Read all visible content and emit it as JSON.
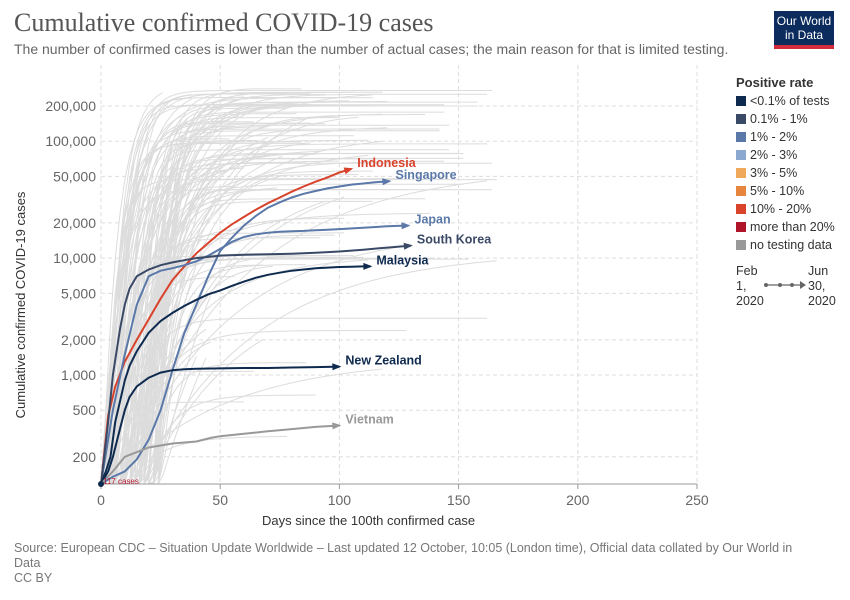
{
  "header": {
    "title": "Cumulative confirmed COVID-19 cases",
    "subtitle": "The number of confirmed cases is lower than the number of actual cases; the main reason for that is limited testing.",
    "logo_line1": "Our World",
    "logo_line2": "in Data"
  },
  "footer": {
    "source": "Source: European CDC – Situation Update Worldwide – Last updated 12 October, 10:05 (London time), Official data collated by Our World in Data",
    "license": "CC BY"
  },
  "legend": {
    "title": "Positive rate",
    "items": [
      {
        "label": "<0.1% of tests",
        "color": "#0f2a4f"
      },
      {
        "label": "0.1% - 1%",
        "color": "#3a4a66"
      },
      {
        "label": "1% - 2%",
        "color": "#5a78a8"
      },
      {
        "label": "2% - 3%",
        "color": "#8aa8d0"
      },
      {
        "label": "3% - 5%",
        "color": "#f0a85a"
      },
      {
        "label": "5% - 10%",
        "color": "#e8853c"
      },
      {
        "label": "10% - 20%",
        "color": "#d9422b"
      },
      {
        "label": "more than 20%",
        "color": "#b0142b"
      },
      {
        "label": "no testing data",
        "color": "#999999"
      }
    ]
  },
  "timeline": {
    "start_month": "Feb",
    "start_day": "1,",
    "start_year": "2020",
    "end_month": "Jun",
    "end_day": "30,",
    "end_year": "2020"
  },
  "chart_data": {
    "type": "line",
    "xlabel": "Days since the 100th confirmed case",
    "ylabel": "Cumulative confirmed COVID-19 cases",
    "y_scale": "log",
    "xlim": [
      0,
      250
    ],
    "ylim": [
      117,
      300000
    ],
    "x_ticks": [
      0,
      50,
      100,
      150,
      200,
      250
    ],
    "y_ticks": [
      200,
      500,
      1000,
      2000,
      5000,
      10000,
      20000,
      50000,
      100000,
      200000
    ],
    "y_tick_labels": [
      "200",
      "500",
      "1,000",
      "2,000",
      "5,000",
      "10,000",
      "20,000",
      "50,000",
      "100,000",
      "200,000"
    ],
    "baseline_label": "117 cases",
    "grid": true,
    "series": [
      {
        "name": "Indonesia",
        "color": "#d9422b",
        "x": [
          0,
          3,
          6,
          10,
          15,
          20,
          25,
          30,
          35,
          40,
          45,
          50,
          55,
          60,
          65,
          70,
          75,
          80,
          85,
          90,
          95,
          100,
          105
        ],
        "y": [
          117,
          450,
          800,
          1300,
          2000,
          3000,
          4500,
          6500,
          8500,
          11000,
          13500,
          16500,
          19500,
          22500,
          26000,
          29500,
          33000,
          37000,
          41000,
          45000,
          49000,
          54000,
          58000
        ]
      },
      {
        "name": "Singapore",
        "color": "#5a78a8",
        "x": [
          0,
          5,
          10,
          15,
          20,
          25,
          30,
          35,
          40,
          42,
          45,
          50,
          55,
          60,
          65,
          70,
          75,
          80,
          85,
          90,
          95,
          100,
          105,
          110,
          115,
          121
        ],
        "y": [
          117,
          135,
          150,
          190,
          280,
          500,
          1100,
          2300,
          4000,
          5000,
          7000,
          11500,
          15000,
          19000,
          23000,
          27000,
          30000,
          33000,
          35500,
          37500,
          39500,
          41000,
          42500,
          43500,
          44500,
          45500
        ]
      },
      {
        "name": "Japan",
        "color": "#5a78a8",
        "x": [
          0,
          5,
          10,
          15,
          20,
          25,
          30,
          35,
          40,
          45,
          50,
          55,
          60,
          65,
          70,
          75,
          80,
          85,
          90,
          95,
          100,
          110,
          120,
          129
        ],
        "y": [
          117,
          500,
          1500,
          4000,
          7000,
          7800,
          8200,
          8700,
          9400,
          10500,
          12000,
          13800,
          15200,
          16000,
          16500,
          16800,
          17000,
          17100,
          17300,
          17500,
          17700,
          18200,
          18700,
          19000
        ]
      },
      {
        "name": "South Korea",
        "color": "#3a4a66",
        "x": [
          0,
          3,
          5,
          8,
          10,
          12,
          15,
          20,
          25,
          30,
          35,
          40,
          50,
          60,
          70,
          80,
          90,
          100,
          110,
          120,
          130
        ],
        "y": [
          117,
          400,
          1000,
          2500,
          4000,
          5500,
          7000,
          8000,
          8700,
          9200,
          9600,
          10000,
          10500,
          10700,
          10800,
          10900,
          11100,
          11400,
          11800,
          12300,
          12800
        ]
      },
      {
        "name": "Malaysia",
        "color": "#0f2a4f",
        "x": [
          0,
          2,
          4,
          6,
          8,
          10,
          12,
          15,
          20,
          25,
          30,
          35,
          40,
          45,
          50,
          55,
          60,
          65,
          70,
          75,
          80,
          85,
          90,
          95,
          100,
          105,
          110,
          113
        ],
        "y": [
          117,
          150,
          200,
          400,
          600,
          900,
          1200,
          1600,
          2300,
          2900,
          3400,
          3900,
          4400,
          4900,
          5300,
          5800,
          6300,
          6800,
          7200,
          7500,
          7800,
          8000,
          8200,
          8300,
          8400,
          8450,
          8500,
          8500
        ]
      },
      {
        "name": "New Zealand",
        "color": "#0f2a4f",
        "x": [
          0,
          3,
          5,
          8,
          10,
          12,
          15,
          20,
          25,
          30,
          35,
          40,
          50,
          60,
          70,
          80,
          90,
          100
        ],
        "y": [
          117,
          150,
          200,
          350,
          500,
          650,
          800,
          950,
          1050,
          1100,
          1120,
          1130,
          1140,
          1150,
          1150,
          1160,
          1170,
          1180
        ]
      },
      {
        "name": "Vietnam",
        "color": "#999999",
        "x": [
          0,
          5,
          10,
          20,
          30,
          40,
          46,
          50,
          60,
          70,
          80,
          90,
          100
        ],
        "y": [
          117,
          150,
          200,
          240,
          260,
          270,
          290,
          300,
          315,
          330,
          345,
          360,
          370
        ]
      }
    ]
  }
}
